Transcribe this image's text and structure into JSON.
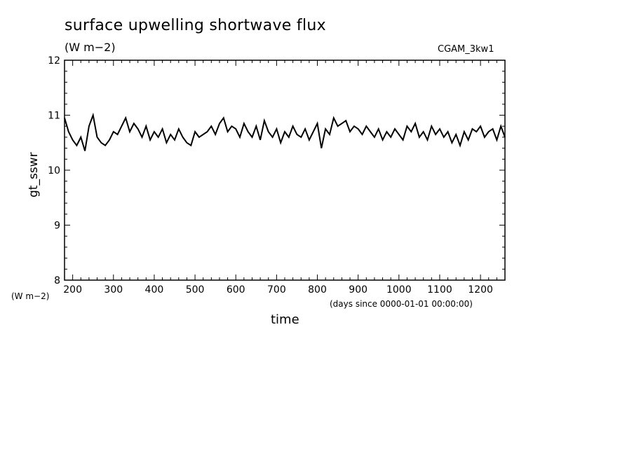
{
  "chart_data": {
    "type": "line",
    "title": "surface upwelling shortwave flux",
    "title_units": "(W m−2)",
    "run_label": "CGAM_3kw1",
    "ylabel": "gt_sswr",
    "yunits": "(W m−2)",
    "xlabel": "time",
    "xunits": "(days since 0000-01-01 00:00:00)",
    "xlim": [
      180,
      1260
    ],
    "ylim": [
      8,
      12
    ],
    "xticks": [
      200,
      300,
      400,
      500,
      600,
      700,
      800,
      900,
      1000,
      1100,
      1200
    ],
    "yticks": [
      8,
      9,
      10,
      11,
      12
    ],
    "grid": false,
    "series": [
      {
        "x": [
          180,
          190,
          200,
          210,
          220,
          230,
          240,
          250,
          260,
          270,
          280,
          290,
          300,
          310,
          320,
          330,
          340,
          350,
          360,
          370,
          380,
          390,
          400,
          410,
          420,
          430,
          440,
          450,
          460,
          470,
          480,
          490,
          500,
          510,
          520,
          530,
          540,
          550,
          560,
          570,
          580,
          590,
          600,
          610,
          620,
          630,
          640,
          650,
          660,
          670,
          680,
          690,
          700,
          710,
          720,
          730,
          740,
          750,
          760,
          770,
          780,
          790,
          800,
          810,
          820,
          830,
          840,
          850,
          860,
          870,
          880,
          890,
          900,
          910,
          920,
          930,
          940,
          950,
          960,
          970,
          980,
          990,
          1000,
          1010,
          1020,
          1030,
          1040,
          1050,
          1060,
          1070,
          1080,
          1090,
          1100,
          1110,
          1120,
          1130,
          1140,
          1150,
          1160,
          1170,
          1180,
          1190,
          1200,
          1210,
          1220,
          1230,
          1240,
          1250,
          1260
        ],
        "y": [
          10.95,
          10.7,
          10.55,
          10.45,
          10.6,
          10.35,
          10.8,
          11.0,
          10.6,
          10.5,
          10.45,
          10.55,
          10.7,
          10.65,
          10.8,
          10.95,
          10.7,
          10.85,
          10.75,
          10.6,
          10.8,
          10.55,
          10.7,
          10.6,
          10.75,
          10.5,
          10.65,
          10.55,
          10.75,
          10.6,
          10.5,
          10.45,
          10.7,
          10.6,
          10.65,
          10.7,
          10.8,
          10.65,
          10.85,
          10.95,
          10.7,
          10.8,
          10.75,
          10.6,
          10.85,
          10.7,
          10.6,
          10.8,
          10.55,
          10.9,
          10.7,
          10.6,
          10.75,
          10.5,
          10.7,
          10.6,
          10.8,
          10.65,
          10.6,
          10.75,
          10.55,
          10.7,
          10.85,
          10.4,
          10.75,
          10.65,
          10.95,
          10.8,
          10.85,
          10.9,
          10.7,
          10.8,
          10.75,
          10.65,
          10.8,
          10.7,
          10.6,
          10.75,
          10.55,
          10.7,
          10.6,
          10.75,
          10.65,
          10.55,
          10.8,
          10.7,
          10.85,
          10.6,
          10.7,
          10.55,
          10.8,
          10.65,
          10.75,
          10.6,
          10.7,
          10.5,
          10.65,
          10.45,
          10.7,
          10.55,
          10.75,
          10.7,
          10.8,
          10.6,
          10.7,
          10.75,
          10.55,
          10.8,
          10.6
        ]
      }
    ]
  }
}
